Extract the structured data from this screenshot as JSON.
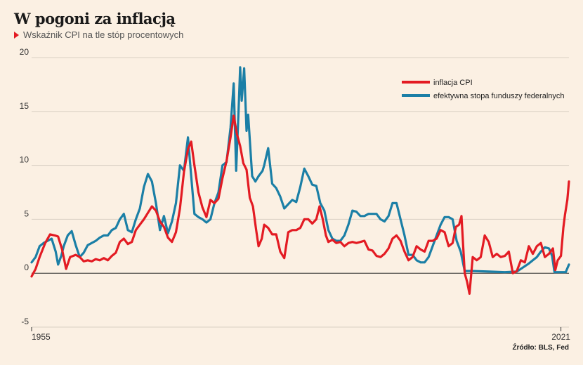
{
  "header": {
    "title": "W pogoni za inflacją",
    "subtitle": "Wskaźnik CPI na tle stóp procentowych"
  },
  "footer": {
    "source": "Źródło: BLS, Fed"
  },
  "colors": {
    "cpi": "#e31b23",
    "fed": "#1b7fa6",
    "grid": "#d9cfc3",
    "zero": "#222222"
  },
  "chart_data": {
    "type": "line",
    "title": "W pogoni za inflacją",
    "subtitle": "Wskaźnik CPI na tle stóp procentowych",
    "xlabel": "",
    "ylabel": "",
    "xlim": [
      1955,
      2022
    ],
    "ylim": [
      -5,
      20
    ],
    "y_ticks": [
      20,
      15,
      10,
      5,
      0,
      -5
    ],
    "x_ticks": [
      1955,
      2021
    ],
    "grid": "horizontal",
    "legend_position": "top-right",
    "series": [
      {
        "name": "inflacja CPI",
        "color": "#e31b23",
        "points": [
          [
            1955,
            -0.3
          ],
          [
            1955.5,
            0.4
          ],
          [
            1956,
            1.5
          ],
          [
            1956.7,
            2.8
          ],
          [
            1957.3,
            3.6
          ],
          [
            1957.9,
            3.5
          ],
          [
            1958.3,
            3.4
          ],
          [
            1958.8,
            2.2
          ],
          [
            1959.3,
            0.4
          ],
          [
            1959.8,
            1.5
          ],
          [
            1960.5,
            1.7
          ],
          [
            1961,
            1.5
          ],
          [
            1961.5,
            1.1
          ],
          [
            1962,
            1.2
          ],
          [
            1962.5,
            1.1
          ],
          [
            1963,
            1.3
          ],
          [
            1963.5,
            1.2
          ],
          [
            1964,
            1.4
          ],
          [
            1964.5,
            1.2
          ],
          [
            1965,
            1.6
          ],
          [
            1965.5,
            1.9
          ],
          [
            1966,
            2.9
          ],
          [
            1966.5,
            3.2
          ],
          [
            1967,
            2.7
          ],
          [
            1967.5,
            2.9
          ],
          [
            1968,
            4.0
          ],
          [
            1968.5,
            4.5
          ],
          [
            1969,
            5.0
          ],
          [
            1969.5,
            5.6
          ],
          [
            1970,
            6.2
          ],
          [
            1970.5,
            5.8
          ],
          [
            1971,
            4.8
          ],
          [
            1971.5,
            4.3
          ],
          [
            1972,
            3.3
          ],
          [
            1972.5,
            2.9
          ],
          [
            1973,
            3.8
          ],
          [
            1973.5,
            6.0
          ],
          [
            1974,
            9.4
          ],
          [
            1974.5,
            11.5
          ],
          [
            1974.9,
            12.2
          ],
          [
            1975.3,
            10.0
          ],
          [
            1975.8,
            7.5
          ],
          [
            1976.3,
            6.1
          ],
          [
            1976.8,
            5.2
          ],
          [
            1977.3,
            6.8
          ],
          [
            1977.8,
            6.5
          ],
          [
            1978.3,
            6.9
          ],
          [
            1978.8,
            8.8
          ],
          [
            1979.3,
            10.4
          ],
          [
            1979.8,
            12.6
          ],
          [
            1980.2,
            14.6
          ],
          [
            1980.6,
            12.9
          ],
          [
            1981,
            11.8
          ],
          [
            1981.4,
            10.2
          ],
          [
            1981.8,
            9.6
          ],
          [
            1982.2,
            7.0
          ],
          [
            1982.6,
            6.2
          ],
          [
            1983,
            4.0
          ],
          [
            1983.3,
            2.5
          ],
          [
            1983.7,
            3.2
          ],
          [
            1984,
            4.5
          ],
          [
            1984.5,
            4.2
          ],
          [
            1985,
            3.6
          ],
          [
            1985.5,
            3.6
          ],
          [
            1986,
            2.0
          ],
          [
            1986.5,
            1.4
          ],
          [
            1987,
            3.8
          ],
          [
            1987.5,
            4.0
          ],
          [
            1988,
            4.0
          ],
          [
            1988.5,
            4.2
          ],
          [
            1989,
            5.0
          ],
          [
            1989.5,
            5.0
          ],
          [
            1990,
            4.6
          ],
          [
            1990.5,
            5.0
          ],
          [
            1990.9,
            6.2
          ],
          [
            1991.3,
            5.0
          ],
          [
            1991.7,
            3.5
          ],
          [
            1992,
            2.9
          ],
          [
            1992.5,
            3.1
          ],
          [
            1993,
            2.8
          ],
          [
            1993.5,
            2.9
          ],
          [
            1994,
            2.5
          ],
          [
            1994.5,
            2.8
          ],
          [
            1995,
            2.9
          ],
          [
            1995.5,
            2.8
          ],
          [
            1996,
            2.9
          ],
          [
            1996.5,
            3.0
          ],
          [
            1997,
            2.2
          ],
          [
            1997.5,
            2.1
          ],
          [
            1998,
            1.6
          ],
          [
            1998.5,
            1.5
          ],
          [
            1999,
            1.8
          ],
          [
            1999.5,
            2.3
          ],
          [
            2000,
            3.2
          ],
          [
            2000.5,
            3.5
          ],
          [
            2001,
            3.0
          ],
          [
            2001.5,
            2.0
          ],
          [
            2002,
            1.2
          ],
          [
            2002.5,
            1.5
          ],
          [
            2003,
            2.5
          ],
          [
            2003.5,
            2.2
          ],
          [
            2004,
            2.0
          ],
          [
            2004.5,
            3.0
          ],
          [
            2005,
            3.0
          ],
          [
            2005.5,
            3.2
          ],
          [
            2006,
            4.0
          ],
          [
            2006.5,
            3.8
          ],
          [
            2007,
            2.5
          ],
          [
            2007.5,
            2.8
          ],
          [
            2007.9,
            4.3
          ],
          [
            2008.3,
            4.5
          ],
          [
            2008.6,
            5.3
          ],
          [
            2009,
            0.0
          ],
          [
            2009.3,
            -0.8
          ],
          [
            2009.6,
            -1.9
          ],
          [
            2010,
            1.5
          ],
          [
            2010.5,
            1.2
          ],
          [
            2011,
            1.5
          ],
          [
            2011.5,
            3.5
          ],
          [
            2012,
            2.9
          ],
          [
            2012.5,
            1.5
          ],
          [
            2013,
            1.8
          ],
          [
            2013.5,
            1.5
          ],
          [
            2014,
            1.6
          ],
          [
            2014.5,
            2.0
          ],
          [
            2015,
            0.0
          ],
          [
            2015.5,
            0.2
          ],
          [
            2016,
            1.2
          ],
          [
            2016.5,
            1.0
          ],
          [
            2017,
            2.5
          ],
          [
            2017.5,
            1.8
          ],
          [
            2018,
            2.5
          ],
          [
            2018.5,
            2.8
          ],
          [
            2019,
            1.5
          ],
          [
            2019.5,
            1.8
          ],
          [
            2020,
            2.3
          ],
          [
            2020.3,
            0.3
          ],
          [
            2020.6,
            1.2
          ],
          [
            2021,
            1.6
          ],
          [
            2021.3,
            4.2
          ],
          [
            2021.5,
            5.4
          ],
          [
            2021.8,
            6.8
          ],
          [
            2022,
            8.5
          ]
        ]
      },
      {
        "name": "efektywna stopa funduszy federalnych",
        "color": "#1b7fa6",
        "points": [
          [
            1955,
            1.0
          ],
          [
            1955.5,
            1.5
          ],
          [
            1956,
            2.5
          ],
          [
            1956.5,
            2.8
          ],
          [
            1957,
            3.0
          ],
          [
            1957.5,
            3.2
          ],
          [
            1958,
            2.0
          ],
          [
            1958.3,
            0.8
          ],
          [
            1958.7,
            1.6
          ],
          [
            1959,
            2.5
          ],
          [
            1959.5,
            3.5
          ],
          [
            1960,
            3.9
          ],
          [
            1960.5,
            2.6
          ],
          [
            1961,
            1.5
          ],
          [
            1961.5,
            1.9
          ],
          [
            1962,
            2.6
          ],
          [
            1962.5,
            2.8
          ],
          [
            1963,
            3.0
          ],
          [
            1963.5,
            3.3
          ],
          [
            1964,
            3.5
          ],
          [
            1964.5,
            3.5
          ],
          [
            1965,
            4.0
          ],
          [
            1965.5,
            4.2
          ],
          [
            1966,
            5.0
          ],
          [
            1966.5,
            5.5
          ],
          [
            1967,
            4.0
          ],
          [
            1967.5,
            3.8
          ],
          [
            1968,
            5.0
          ],
          [
            1968.5,
            6.0
          ],
          [
            1969,
            8.0
          ],
          [
            1969.5,
            9.2
          ],
          [
            1970,
            8.5
          ],
          [
            1970.5,
            6.5
          ],
          [
            1971,
            4.0
          ],
          [
            1971.5,
            5.3
          ],
          [
            1972,
            3.7
          ],
          [
            1972.5,
            4.8
          ],
          [
            1973,
            6.5
          ],
          [
            1973.5,
            10.0
          ],
          [
            1974,
            9.5
          ],
          [
            1974.5,
            12.6
          ],
          [
            1974.9,
            9.0
          ],
          [
            1975.3,
            5.5
          ],
          [
            1975.8,
            5.2
          ],
          [
            1976.3,
            5.0
          ],
          [
            1976.8,
            4.7
          ],
          [
            1977.3,
            5.0
          ],
          [
            1977.8,
            6.5
          ],
          [
            1978.3,
            7.5
          ],
          [
            1978.8,
            10.0
          ],
          [
            1979.3,
            10.3
          ],
          [
            1979.8,
            13.5
          ],
          [
            1980.2,
            17.6
          ],
          [
            1980.5,
            9.5
          ],
          [
            1980.8,
            15.0
          ],
          [
            1981,
            19.1
          ],
          [
            1981.2,
            16.0
          ],
          [
            1981.5,
            19.0
          ],
          [
            1981.8,
            13.2
          ],
          [
            1982,
            14.7
          ],
          [
            1982.5,
            9.0
          ],
          [
            1982.9,
            8.5
          ],
          [
            1983.3,
            9.0
          ],
          [
            1983.8,
            9.5
          ],
          [
            1984,
            10.0
          ],
          [
            1984.5,
            11.6
          ],
          [
            1985,
            8.3
          ],
          [
            1985.5,
            7.9
          ],
          [
            1986,
            7.1
          ],
          [
            1986.5,
            6.0
          ],
          [
            1987,
            6.4
          ],
          [
            1987.5,
            6.8
          ],
          [
            1988,
            6.6
          ],
          [
            1988.5,
            8.0
          ],
          [
            1989,
            9.7
          ],
          [
            1989.5,
            9.0
          ],
          [
            1990,
            8.2
          ],
          [
            1990.5,
            8.1
          ],
          [
            1991,
            6.5
          ],
          [
            1991.5,
            5.8
          ],
          [
            1992,
            4.0
          ],
          [
            1992.5,
            3.2
          ],
          [
            1993,
            3.0
          ],
          [
            1993.5,
            3.0
          ],
          [
            1994,
            3.5
          ],
          [
            1994.5,
            4.5
          ],
          [
            1995,
            5.8
          ],
          [
            1995.5,
            5.7
          ],
          [
            1996,
            5.3
          ],
          [
            1996.5,
            5.3
          ],
          [
            1997,
            5.5
          ],
          [
            1997.5,
            5.5
          ],
          [
            1998,
            5.5
          ],
          [
            1998.5,
            5.0
          ],
          [
            1999,
            4.8
          ],
          [
            1999.5,
            5.3
          ],
          [
            2000,
            6.5
          ],
          [
            2000.5,
            6.5
          ],
          [
            2001,
            5.0
          ],
          [
            2001.5,
            3.5
          ],
          [
            2002,
            1.7
          ],
          [
            2002.5,
            1.7
          ],
          [
            2003,
            1.2
          ],
          [
            2003.5,
            1.0
          ],
          [
            2004,
            1.0
          ],
          [
            2004.5,
            1.5
          ],
          [
            2005,
            2.5
          ],
          [
            2005.5,
            3.5
          ],
          [
            2006,
            4.5
          ],
          [
            2006.5,
            5.2
          ],
          [
            2007,
            5.2
          ],
          [
            2007.5,
            5.0
          ],
          [
            2008,
            3.0
          ],
          [
            2008.5,
            2.0
          ],
          [
            2009,
            0.2
          ],
          [
            2010,
            0.2
          ],
          [
            2012,
            0.15
          ],
          [
            2014,
            0.1
          ],
          [
            2015.5,
            0.15
          ],
          [
            2016,
            0.4
          ],
          [
            2017,
            0.9
          ],
          [
            2017.5,
            1.2
          ],
          [
            2018,
            1.5
          ],
          [
            2018.5,
            2.0
          ],
          [
            2019,
            2.4
          ],
          [
            2019.5,
            2.3
          ],
          [
            2019.9,
            1.6
          ],
          [
            2020.2,
            0.1
          ],
          [
            2021,
            0.1
          ],
          [
            2021.6,
            0.1
          ],
          [
            2022,
            0.8
          ]
        ]
      }
    ]
  }
}
